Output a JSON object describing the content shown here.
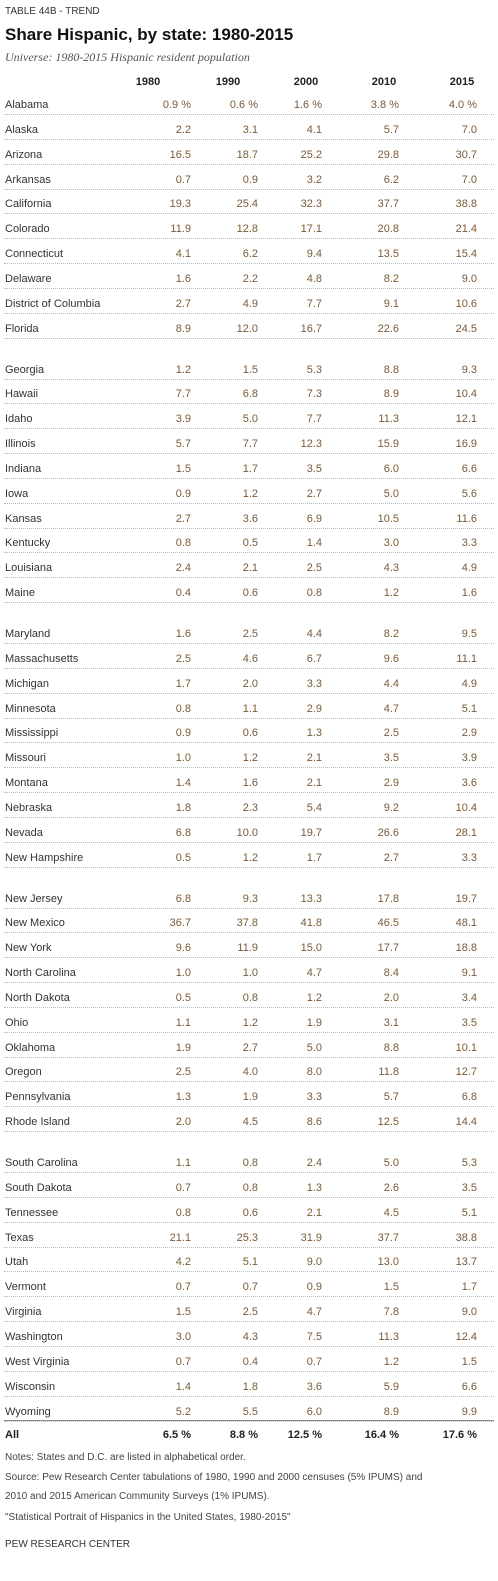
{
  "header": {
    "label": "TABLE 44B - TREND",
    "title": "Share Hispanic, by state: 1980-2015",
    "subtitle": "Universe: 1980-2015 Hispanic resident population"
  },
  "table": {
    "columns": [
      "1980",
      "1990",
      "2000",
      "2010",
      "2015"
    ],
    "groups": [
      [
        [
          "Alabama",
          "0.9 %",
          "0.6 %",
          "1.6 %",
          "3.8 %",
          "4.0 %"
        ],
        [
          "Alaska",
          "2.2",
          "3.1",
          "4.1",
          "5.7",
          "7.0"
        ],
        [
          "Arizona",
          "16.5",
          "18.7",
          "25.2",
          "29.8",
          "30.7"
        ],
        [
          "Arkansas",
          "0.7",
          "0.9",
          "3.2",
          "6.2",
          "7.0"
        ],
        [
          "California",
          "19.3",
          "25.4",
          "32.3",
          "37.7",
          "38.8"
        ],
        [
          "Colorado",
          "11.9",
          "12.8",
          "17.1",
          "20.8",
          "21.4"
        ],
        [
          "Connecticut",
          "4.1",
          "6.2",
          "9.4",
          "13.5",
          "15.4"
        ],
        [
          "Delaware",
          "1.6",
          "2.2",
          "4.8",
          "8.2",
          "9.0"
        ],
        [
          "District of Columbia",
          "2.7",
          "4.9",
          "7.7",
          "9.1",
          "10.6"
        ],
        [
          "Florida",
          "8.9",
          "12.0",
          "16.7",
          "22.6",
          "24.5"
        ]
      ],
      [
        [
          "Georgia",
          "1.2",
          "1.5",
          "5.3",
          "8.8",
          "9.3"
        ],
        [
          "Hawaii",
          "7.7",
          "6.8",
          "7.3",
          "8.9",
          "10.4"
        ],
        [
          "Idaho",
          "3.9",
          "5.0",
          "7.7",
          "11.3",
          "12.1"
        ],
        [
          "Illinois",
          "5.7",
          "7.7",
          "12.3",
          "15.9",
          "16.9"
        ],
        [
          "Indiana",
          "1.5",
          "1.7",
          "3.5",
          "6.0",
          "6.6"
        ],
        [
          "Iowa",
          "0.9",
          "1.2",
          "2.7",
          "5.0",
          "5.6"
        ],
        [
          "Kansas",
          "2.7",
          "3.6",
          "6.9",
          "10.5",
          "11.6"
        ],
        [
          "Kentucky",
          "0.8",
          "0.5",
          "1.4",
          "3.0",
          "3.3"
        ],
        [
          "Louisiana",
          "2.4",
          "2.1",
          "2.5",
          "4.3",
          "4.9"
        ],
        [
          "Maine",
          "0.4",
          "0.6",
          "0.8",
          "1.2",
          "1.6"
        ]
      ],
      [
        [
          "Maryland",
          "1.6",
          "2.5",
          "4.4",
          "8.2",
          "9.5"
        ],
        [
          "Massachusetts",
          "2.5",
          "4.6",
          "6.7",
          "9.6",
          "11.1"
        ],
        [
          "Michigan",
          "1.7",
          "2.0",
          "3.3",
          "4.4",
          "4.9"
        ],
        [
          "Minnesota",
          "0.8",
          "1.1",
          "2.9",
          "4.7",
          "5.1"
        ],
        [
          "Mississippi",
          "0.9",
          "0.6",
          "1.3",
          "2.5",
          "2.9"
        ],
        [
          "Missouri",
          "1.0",
          "1.2",
          "2.1",
          "3.5",
          "3.9"
        ],
        [
          "Montana",
          "1.4",
          "1.6",
          "2.1",
          "2.9",
          "3.6"
        ],
        [
          "Nebraska",
          "1.8",
          "2.3",
          "5.4",
          "9.2",
          "10.4"
        ],
        [
          "Nevada",
          "6.8",
          "10.0",
          "19.7",
          "26.6",
          "28.1"
        ],
        [
          "New Hampshire",
          "0.5",
          "1.2",
          "1.7",
          "2.7",
          "3.3"
        ]
      ],
      [
        [
          "New Jersey",
          "6.8",
          "9.3",
          "13.3",
          "17.8",
          "19.7"
        ],
        [
          "New Mexico",
          "36.7",
          "37.8",
          "41.8",
          "46.5",
          "48.1"
        ],
        [
          "New York",
          "9.6",
          "11.9",
          "15.0",
          "17.7",
          "18.8"
        ],
        [
          "North Carolina",
          "1.0",
          "1.0",
          "4.7",
          "8.4",
          "9.1"
        ],
        [
          "North Dakota",
          "0.5",
          "0.8",
          "1.2",
          "2.0",
          "3.4"
        ],
        [
          "Ohio",
          "1.1",
          "1.2",
          "1.9",
          "3.1",
          "3.5"
        ],
        [
          "Oklahoma",
          "1.9",
          "2.7",
          "5.0",
          "8.8",
          "10.1"
        ],
        [
          "Oregon",
          "2.5",
          "4.0",
          "8.0",
          "11.8",
          "12.7"
        ],
        [
          "Pennsylvania",
          "1.3",
          "1.9",
          "3.3",
          "5.7",
          "6.8"
        ],
        [
          "Rhode Island",
          "2.0",
          "4.5",
          "8.6",
          "12.5",
          "14.4"
        ]
      ],
      [
        [
          "South Carolina",
          "1.1",
          "0.8",
          "2.4",
          "5.0",
          "5.3"
        ],
        [
          "South Dakota",
          "0.7",
          "0.8",
          "1.3",
          "2.6",
          "3.5"
        ],
        [
          "Tennessee",
          "0.8",
          "0.6",
          "2.1",
          "4.5",
          "5.1"
        ],
        [
          "Texas",
          "21.1",
          "25.3",
          "31.9",
          "37.7",
          "38.8"
        ],
        [
          "Utah",
          "4.2",
          "5.1",
          "9.0",
          "13.0",
          "13.7"
        ],
        [
          "Vermont",
          "0.7",
          "0.7",
          "0.9",
          "1.5",
          "1.7"
        ],
        [
          "Virginia",
          "1.5",
          "2.5",
          "4.7",
          "7.8",
          "9.0"
        ],
        [
          "Washington",
          "3.0",
          "4.3",
          "7.5",
          "11.3",
          "12.4"
        ],
        [
          "West Virginia",
          "0.7",
          "0.4",
          "0.7",
          "1.2",
          "1.5"
        ],
        [
          "Wisconsin",
          "1.4",
          "1.8",
          "3.6",
          "5.9",
          "6.6"
        ],
        [
          "Wyoming",
          "5.2",
          "5.5",
          "6.0",
          "8.9",
          "9.9"
        ]
      ]
    ],
    "total": [
      "All",
      "6.5 %",
      "8.8 %",
      "12.5 %",
      "16.4 %",
      "17.6 %"
    ]
  },
  "footer": {
    "notes": "Notes: States and D.C. are listed in alphabetical order.",
    "source": [
      "Source: Pew Research Center tabulations of 1980, 1990 and 2000 censuses (5% IPUMS) and",
      "2010 and 2015 American Community Surveys (1% IPUMS)."
    ],
    "citation": "\"Statistical Portrait of Hispanics in the United States, 1980-2015\"",
    "brand": "PEW RESEARCH CENTER"
  }
}
